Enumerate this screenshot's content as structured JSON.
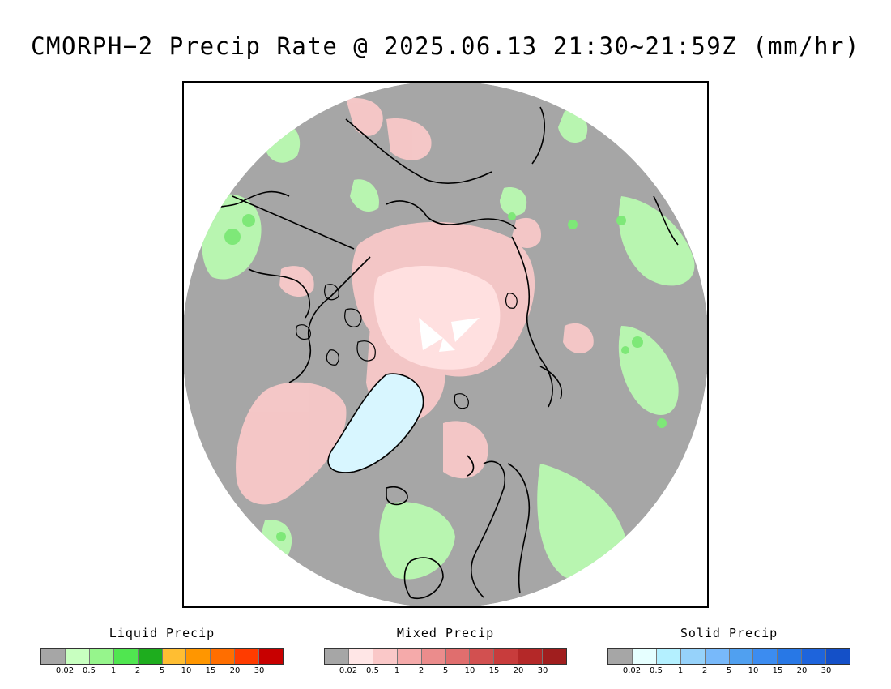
{
  "title": "CMORPH−2 Precip Rate @ 2025.06.13 21:30~21:59Z (mm/hr)",
  "map": {
    "projection": "north-polar-stereographic",
    "colors": {
      "background_gray": "#a6a6a6",
      "mixed_pink": "#f8c8c8",
      "mixed_light": "#ffe0e0",
      "liquid_light": "#b8f5b0",
      "liquid_mid": "#7ee878",
      "solid_light": "#d8f6ff",
      "white_pole": "#ffffff",
      "coast": "#000000"
    }
  },
  "legends": [
    {
      "title": "Liquid Precip",
      "colors": [
        "#a6a6a6",
        "#c8ffc0",
        "#96f58c",
        "#50e650",
        "#1ead1e",
        "#ffbe32",
        "#ff9600",
        "#ff6e00",
        "#ff3c00",
        "#c80000"
      ],
      "ticks": [
        "0.02",
        "0.5",
        "1",
        "2",
        "5",
        "10",
        "15",
        "20",
        "30"
      ]
    },
    {
      "title": "Mixed Precip",
      "colors": [
        "#a6a6a6",
        "#ffe6e6",
        "#fac8c8",
        "#f5aaaa",
        "#eb8c8c",
        "#e06e6e",
        "#d25050",
        "#c83c3c",
        "#b42828",
        "#a01e1e"
      ],
      "ticks": [
        "0.02",
        "0.5",
        "1",
        "2",
        "5",
        "10",
        "15",
        "20",
        "30"
      ]
    },
    {
      "title": "Solid Precip",
      "colors": [
        "#a6a6a6",
        "#e6ffff",
        "#b4f0ff",
        "#96d2fa",
        "#78b9fa",
        "#50a0f0",
        "#3c8cf0",
        "#2878e6",
        "#1e64dc",
        "#1450c8"
      ],
      "ticks": [
        "0.02",
        "0.5",
        "1",
        "2",
        "5",
        "10",
        "15",
        "20",
        "30"
      ]
    }
  ]
}
